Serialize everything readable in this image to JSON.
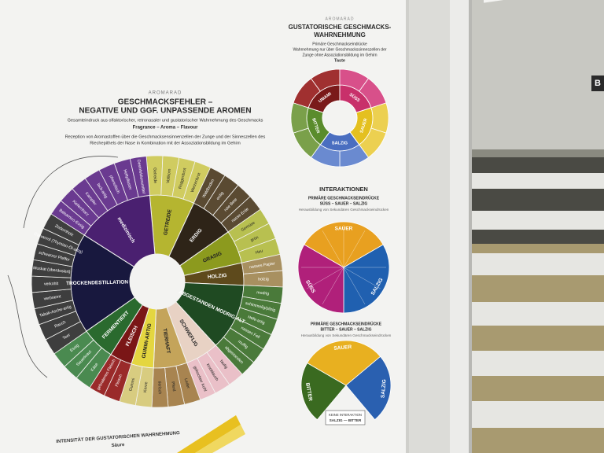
{
  "poster": {
    "left_header": {
      "kicker": "AROMARAD",
      "title_1": "GESCHMACKSFEHLER –",
      "title_2": "NEGATIVE UND GGF. UNPASSENDE AROMEN",
      "desc_1": "Gesamteindruck aus olfaktorischer, retronasaler und gustatorischer Wahrnehmung des Geschmacks",
      "emphasis": "Fragrance – Aroma – Flavour",
      "desc_2": "Rezeption von Aromastoffen über die Geschmacksensinnenzellen der Zunge und der Sinneszellen des",
      "desc_3": "Riechepithels der Nase in Kombination mit der Assoziationsbildung im Gehirn"
    },
    "aroma_wheel": {
      "segments": [
        {
          "label": "GETREIDE",
          "items": [
            "Getreide",
            "Vollkorn",
            "Roggenbrot",
            "Weizenbrot"
          ]
        },
        {
          "label": "ERDIG",
          "items": [
            "Waldboden",
            "erdig",
            "rote Bete",
            "nasse Erde"
          ]
        },
        {
          "label": "GRASIG",
          "items": [
            "Gemüse",
            "grün",
            "Heu"
          ]
        },
        {
          "label": "HOLZIG",
          "items": [
            "nasses Papier",
            "holzig"
          ]
        },
        {
          "label": "ABGESTANDEN MODRIG ALT",
          "items": [
            "modrig",
            "schimmelig/pilzig",
            "Hefe-artig",
            "nasses Fell",
            "muffig",
            "abgestanden"
          ]
        },
        {
          "label": "SCHWEFLIG",
          "items": [
            "faulig",
            "Knoblauch",
            "gekochter Kohl"
          ]
        },
        {
          "label": "TIERHAFT",
          "items": [
            "Leder",
            "Pferd",
            "tierisch"
          ]
        },
        {
          "label": "GUMMI-ARTIG",
          "items": [
            "Kerze",
            "Gummi"
          ]
        },
        {
          "label": "FLEISCH",
          "items": [
            "Fleisch",
            "gebratenes Fleisch"
          ]
        },
        {
          "label": "FERMENTIERT",
          "items": [
            "Käse",
            "Sauerkraut",
            "Essig"
          ]
        },
        {
          "label": "TROCKENDESTILLATION",
          "items": [
            "Teer",
            "Rauch",
            "Tabak-Asche-artig",
            "verbrannt",
            "verkohlt",
            "Muskat (überdosiert)",
            "schwarzer Pfeffer",
            "Carvacrol (Thymian-Öl-artig)",
            "Zedernholz"
          ]
        },
        {
          "label": "medizinisch",
          "items": [
            "Balsamico-Essig",
            "Kiefernharz",
            "Kampfer",
            "lack-artig",
            "phenolisch",
            "Heftpflaster",
            "Desinfektionsmittel"
          ]
        }
      ]
    },
    "taste_header": {
      "kicker": "AROMARAD",
      "title_1": "GUSTATORISCHE GESCHMACKS-",
      "title_2": "WAHRNEHMUNG",
      "desc_1": "Primäre Geschmackseindrücke",
      "desc_2": "Wahrnehmung nur über Geschmackssinneszellen der",
      "desc_3": "Zunge ohne Assoziationsbildung im Gehirn",
      "emphasis": "Taste"
    },
    "taste_wheel": {
      "segments": [
        "UMAMI",
        "SÜSS",
        "SAUER",
        "SALZIG",
        "BITTER"
      ]
    },
    "interactions": {
      "title": "INTERAKTIONEN",
      "subtitle_1": "PRIMÄRE GESCHMACKSEINDRÜCKE",
      "subtitle_2": "SÜSS – SAUER – SALZIG",
      "note": "Herausbildung von Sekundären Geschmackseindrücken",
      "segments": [
        "SAUER",
        "SALZIG",
        "SÜSS"
      ]
    },
    "bitter_interactions": {
      "subtitle_1": "PRIMÄRE GESCHMACKSEINDRÜCKE",
      "subtitle_2": "BITTER – SAUER – SALZIG",
      "note": "Herausbildung von Sekundären Geschmackseindrücken",
      "segments": [
        "BITTER",
        "SAUER",
        "SALZIG"
      ],
      "badge_1": "KEINE INTERAKTION",
      "badge_2": "SALZIG — BITTER"
    },
    "intensity": {
      "title": "INTENSITÄT DER GUSTATORISCHEN WAHRNEHMUNG",
      "label": "Säure"
    }
  },
  "scene": {
    "booth_sign": "B"
  }
}
